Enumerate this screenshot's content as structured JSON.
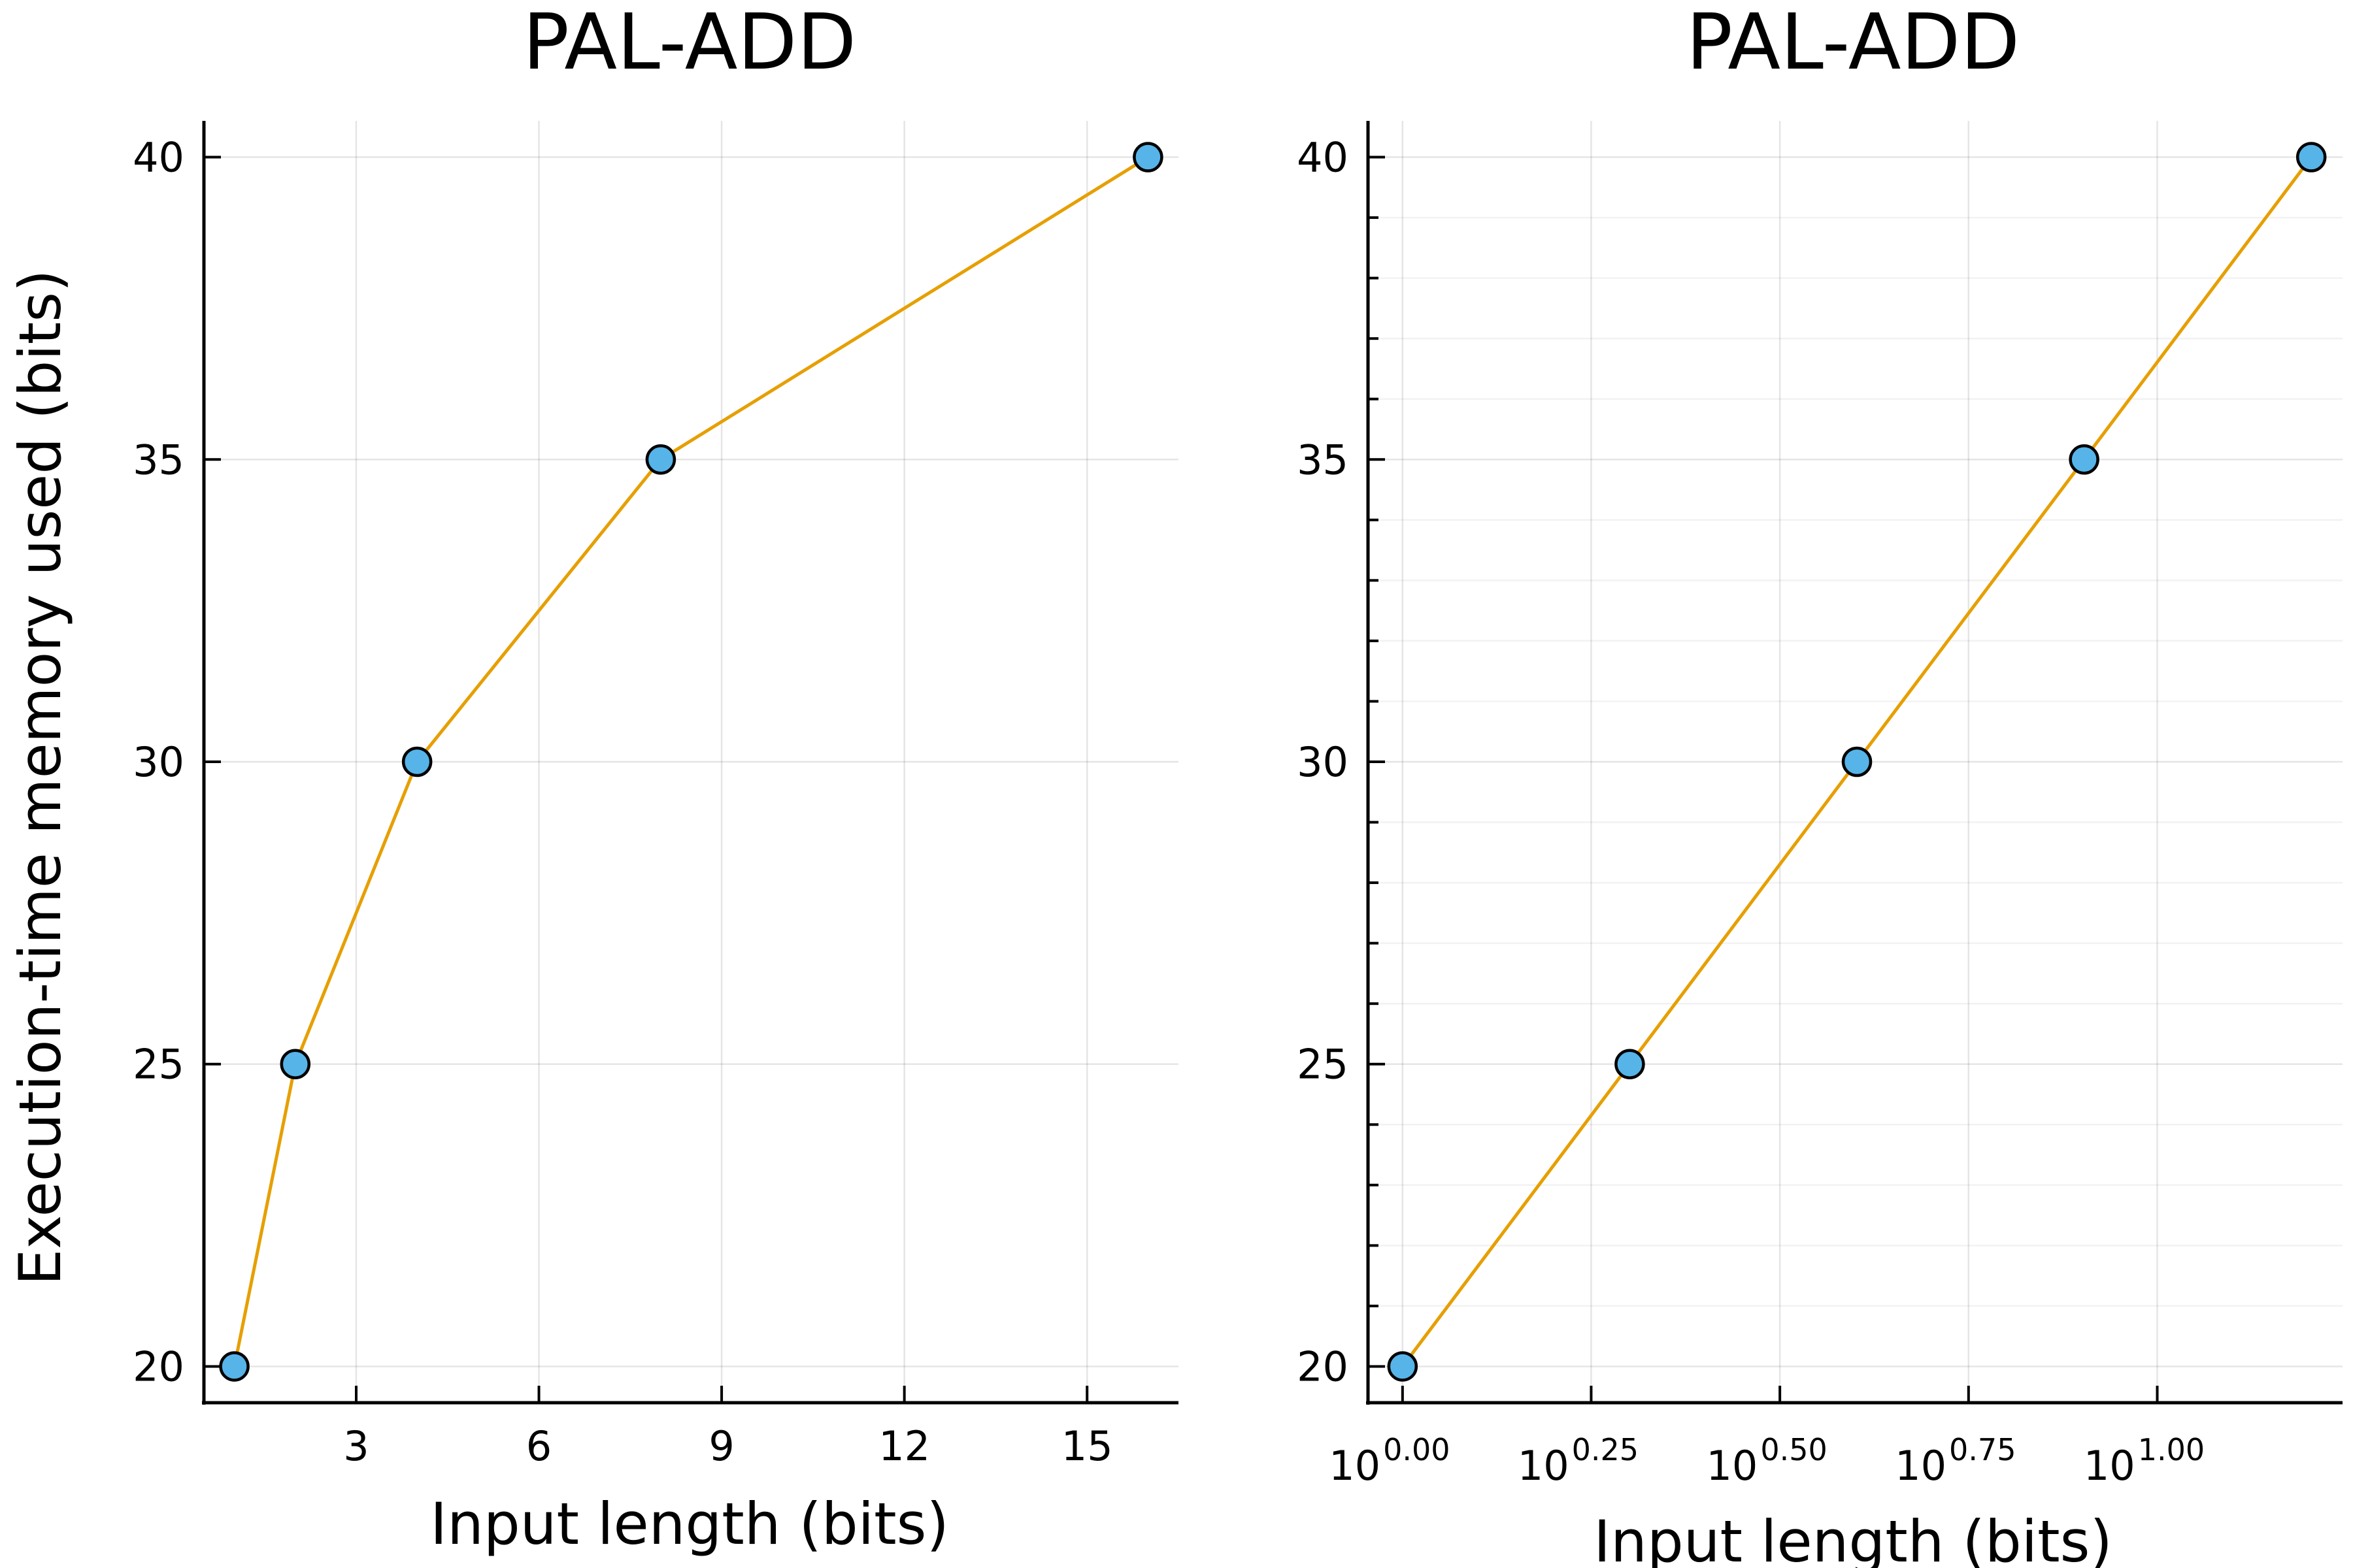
{
  "chart_data": [
    {
      "type": "line",
      "title": "PAL-ADD",
      "xlabel": "Input length (bits)",
      "ylabel": "Execution-time memory used (bits)",
      "x_scale": "linear",
      "xlim": [
        0.5,
        16.5
      ],
      "ylim": [
        19.4,
        40.6
      ],
      "x_ticks": [
        3,
        6,
        9,
        12,
        15
      ],
      "x_tick_labels": [
        "3",
        "6",
        "9",
        "12",
        "15"
      ],
      "y_ticks": [
        20,
        25,
        30,
        35,
        40
      ],
      "y_tick_labels": [
        "20",
        "25",
        "30",
        "35",
        "40"
      ],
      "grid": true,
      "legend": "none",
      "line_color": "#e69f00",
      "marker_color": "#56b4e9",
      "series": [
        {
          "x": [
            1,
            2,
            4,
            8,
            16
          ],
          "y": [
            20,
            25,
            30,
            35,
            40
          ]
        }
      ]
    },
    {
      "type": "line",
      "title": "PAL-ADD",
      "xlabel": "Input length (bits)",
      "ylabel": "",
      "x_scale": "log10",
      "xlim": [
        0.9,
        17.6
      ],
      "ylim": [
        19.4,
        40.6
      ],
      "x_ticks": [
        1,
        1.778,
        3.162,
        5.623,
        10
      ],
      "x_tick_labels": [
        {
          "base": "10",
          "exp": "0.00"
        },
        {
          "base": "10",
          "exp": "0.25"
        },
        {
          "base": "10",
          "exp": "0.50"
        },
        {
          "base": "10",
          "exp": "0.75"
        },
        {
          "base": "10",
          "exp": "1.00"
        }
      ],
      "y_ticks": [
        20,
        25,
        30,
        35,
        40
      ],
      "y_tick_labels": [
        "20",
        "25",
        "30",
        "35",
        "40"
      ],
      "y_minor_ticks": true,
      "grid": true,
      "legend": "none",
      "line_color": "#e69f00",
      "marker_color": "#56b4e9",
      "series": [
        {
          "x": [
            1,
            2,
            4,
            8,
            16
          ],
          "y": [
            20,
            25,
            30,
            35,
            40
          ]
        }
      ]
    }
  ]
}
